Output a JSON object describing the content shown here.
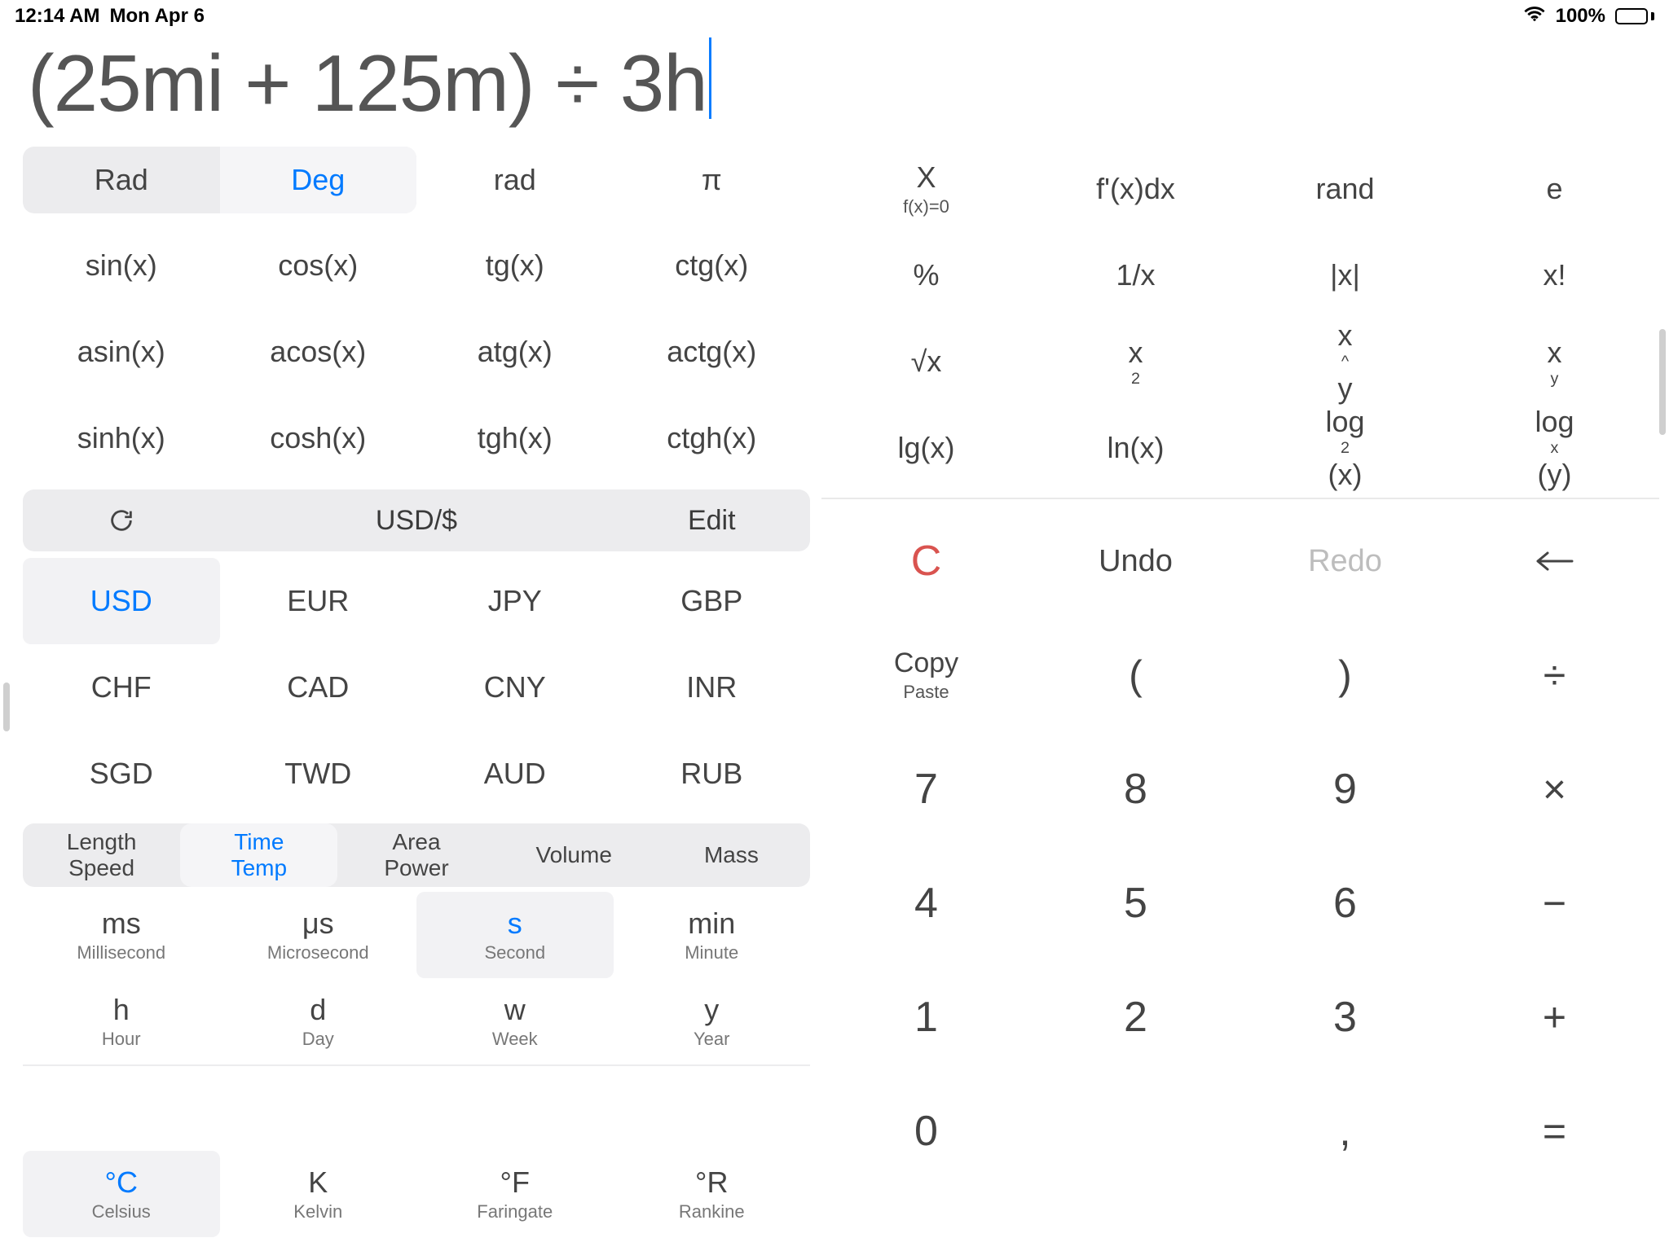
{
  "statusbar": {
    "time": "12:14 AM",
    "date": "Mon Apr 6",
    "battery_pct": "100%"
  },
  "expression": "(25mi + 125m) ÷ 3h",
  "angle": {
    "rad_label": "Rad",
    "deg_label": "Deg",
    "rad_func": "rad",
    "pi": "π",
    "selected": "Deg"
  },
  "trig": [
    [
      "sin(x)",
      "cos(x)",
      "tg(x)",
      "ctg(x)"
    ],
    [
      "asin(x)",
      "acos(x)",
      "atg(x)",
      "actg(x)"
    ],
    [
      "sinh(x)",
      "cosh(x)",
      "tgh(x)",
      "ctgh(x)"
    ]
  ],
  "sci": {
    "row1": [
      {
        "label": "X",
        "sub": "f(x)=0"
      },
      {
        "label": "f'(x)dx"
      },
      {
        "label": "rand"
      },
      {
        "label": "e"
      }
    ],
    "row2": [
      "%",
      "1/x",
      "|x|",
      "x!"
    ],
    "row3": [
      "√x",
      "x²",
      "x^y",
      "xʸ"
    ],
    "row4": [
      "lg(x)",
      "ln(x)",
      "log₂(x)",
      "logₓ(y)"
    ]
  },
  "currency": {
    "toolbar": {
      "refresh": "↻",
      "base": "USD/$",
      "edit": "Edit"
    },
    "selected": "USD",
    "rows": [
      [
        "USD",
        "EUR",
        "JPY",
        "GBP"
      ],
      [
        "CHF",
        "CAD",
        "CNY",
        "INR"
      ],
      [
        "SGD",
        "TWD",
        "AUD",
        "RUB"
      ]
    ]
  },
  "unit_tabs": [
    {
      "line1": "Length",
      "line2": "Speed"
    },
    {
      "line1": "Time",
      "line2": "Temp",
      "active": true
    },
    {
      "line1": "Area",
      "line2": "Power"
    },
    {
      "line1": "Volume",
      "line2": ""
    },
    {
      "line1": "Mass",
      "line2": ""
    }
  ],
  "units": {
    "selected_time": "s",
    "selected_temp": "°C",
    "time1": [
      {
        "sym": "ms",
        "name": "Millisecond"
      },
      {
        "sym": "μs",
        "name": "Microsecond"
      },
      {
        "sym": "s",
        "name": "Second"
      },
      {
        "sym": "min",
        "name": "Minute"
      }
    ],
    "time2": [
      {
        "sym": "h",
        "name": "Hour"
      },
      {
        "sym": "d",
        "name": "Day"
      },
      {
        "sym": "w",
        "name": "Week"
      },
      {
        "sym": "y",
        "name": "Year"
      }
    ],
    "temp": [
      {
        "sym": "°C",
        "name": "Celsius"
      },
      {
        "sym": "K",
        "name": "Kelvin"
      },
      {
        "sym": "°F",
        "name": "Faringate"
      },
      {
        "sym": "°R",
        "name": "Rankine"
      }
    ]
  },
  "keypad": {
    "row1": [
      {
        "label": "C",
        "name": "clear-button",
        "cls": "red"
      },
      {
        "label": "Undo",
        "name": "undo-button",
        "cls": "small"
      },
      {
        "label": "Redo",
        "name": "redo-button",
        "cls": "small dim"
      },
      {
        "label": "←",
        "name": "backspace-button",
        "cls": "op"
      }
    ],
    "row2": [
      {
        "label": "Copy",
        "sub": "Paste",
        "name": "copy-paste-button",
        "cls": "copy-paste"
      },
      {
        "label": "(",
        "name": "open-paren-button",
        "cls": "op"
      },
      {
        "label": ")",
        "name": "close-paren-button",
        "cls": "op"
      },
      {
        "label": "÷",
        "name": "divide-button",
        "cls": "op"
      }
    ],
    "row3": [
      {
        "label": "7",
        "name": "digit-7"
      },
      {
        "label": "8",
        "name": "digit-8"
      },
      {
        "label": "9",
        "name": "digit-9"
      },
      {
        "label": "×",
        "name": "multiply-button",
        "cls": "op"
      }
    ],
    "row4": [
      {
        "label": "4",
        "name": "digit-4"
      },
      {
        "label": "5",
        "name": "digit-5"
      },
      {
        "label": "6",
        "name": "digit-6"
      },
      {
        "label": "−",
        "name": "minus-button",
        "cls": "op"
      }
    ],
    "row5": [
      {
        "label": "1",
        "name": "digit-1"
      },
      {
        "label": "2",
        "name": "digit-2"
      },
      {
        "label": "3",
        "name": "digit-3"
      },
      {
        "label": "+",
        "name": "plus-button",
        "cls": "op"
      }
    ],
    "row6": [
      {
        "label": "0",
        "name": "digit-0"
      },
      {
        "label": "",
        "name": "blank-cell"
      },
      {
        "label": ",",
        "name": "decimal-button"
      },
      {
        "label": "=",
        "name": "equals-button",
        "cls": "op"
      }
    ]
  },
  "colors": {
    "accent": "#007aff",
    "selected_bg": "#f2f2f4",
    "segment_bg": "#ececee",
    "text": "#444444",
    "red": "#d9534f"
  }
}
